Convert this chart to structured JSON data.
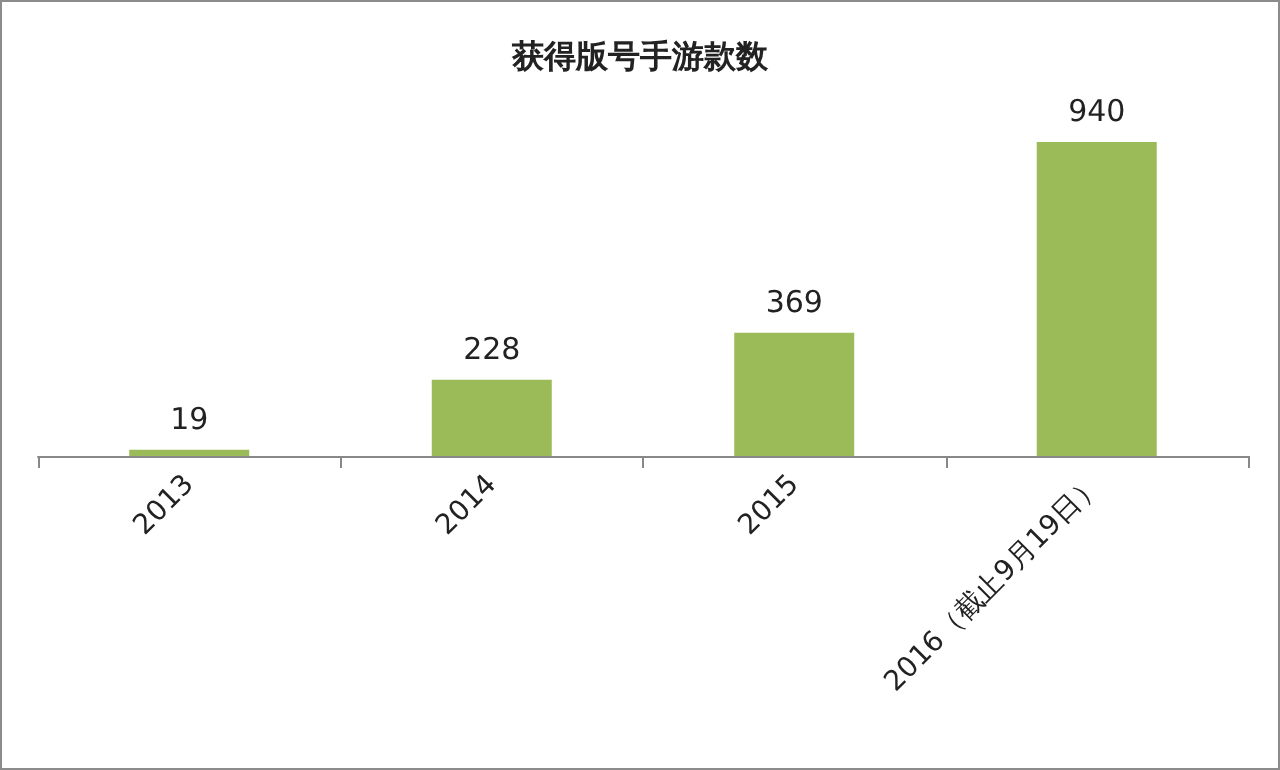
{
  "chart_data": {
    "type": "bar",
    "title": "获得版号手游款数",
    "categories": [
      "2013",
      "2014",
      "2015",
      "2016（截止9月19日）"
    ],
    "values": [
      19,
      228,
      369,
      940
    ],
    "color": "#9bbb59",
    "data_labels": true,
    "grid": false
  }
}
